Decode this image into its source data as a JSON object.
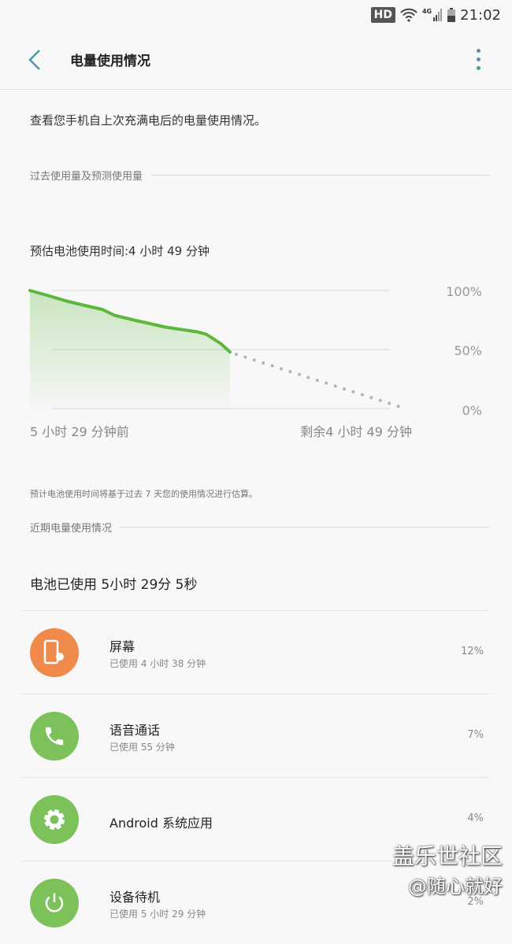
{
  "status_bar": {
    "hd": "HD",
    "network": "4G",
    "time": "21:02"
  },
  "header": {
    "title": "电量使用情况"
  },
  "description": "查看您手机自上次充满电后的电量使用情况。",
  "section_past": "过去使用量及预测使用量",
  "estimate": "预估电池使用时间:4 小时 49 分钟",
  "chart_data": {
    "type": "line",
    "y_ticks": [
      "100%",
      "50%",
      "0%"
    ],
    "ylim": [
      0,
      100
    ],
    "x_labels": {
      "start": "5 小时 29 分钟前",
      "end": "剩余4 小时 49 分钟"
    },
    "xlim_minutes": [
      0,
      618
    ],
    "actual": {
      "x": [
        0,
        28,
        61,
        93,
        119,
        139,
        171,
        223,
        275,
        290,
        314,
        329
      ],
      "y": [
        100,
        96,
        91,
        87,
        84,
        79,
        75,
        69,
        65,
        63,
        55,
        48
      ]
    },
    "predicted": {
      "x": [
        329,
        618
      ],
      "y": [
        48,
        0
      ]
    },
    "colors": {
      "actual": "#5cb83c",
      "predicted": "#b0b4b8"
    }
  },
  "note": "预计电池使用时间将基于过去 7 天您的使用情况进行估算。",
  "section_recent": "近期电量使用情况",
  "battery_used": "电池已使用 5小时 29分 5秒",
  "items": [
    {
      "name": "屏幕",
      "sub": "已使用 4 小时 38 分钟",
      "pct": "12%",
      "icon": "screen-brightness-icon",
      "color": "#ef8a4a"
    },
    {
      "name": "语音通话",
      "sub": "已使用 55 分钟",
      "pct": "7%",
      "icon": "phone-icon",
      "color": "#7cc15a"
    },
    {
      "name": "Android 系统应用",
      "sub": "",
      "pct": "4%",
      "icon": "gear-icon",
      "color": "#7cc15a"
    },
    {
      "name": "设备待机",
      "sub": "已使用 5 小时 29 分钟",
      "pct": "2%",
      "icon": "power-icon",
      "color": "#7cc15a"
    }
  ],
  "watermark": {
    "line1": "盖乐世社区",
    "line2": "@随心就好"
  }
}
